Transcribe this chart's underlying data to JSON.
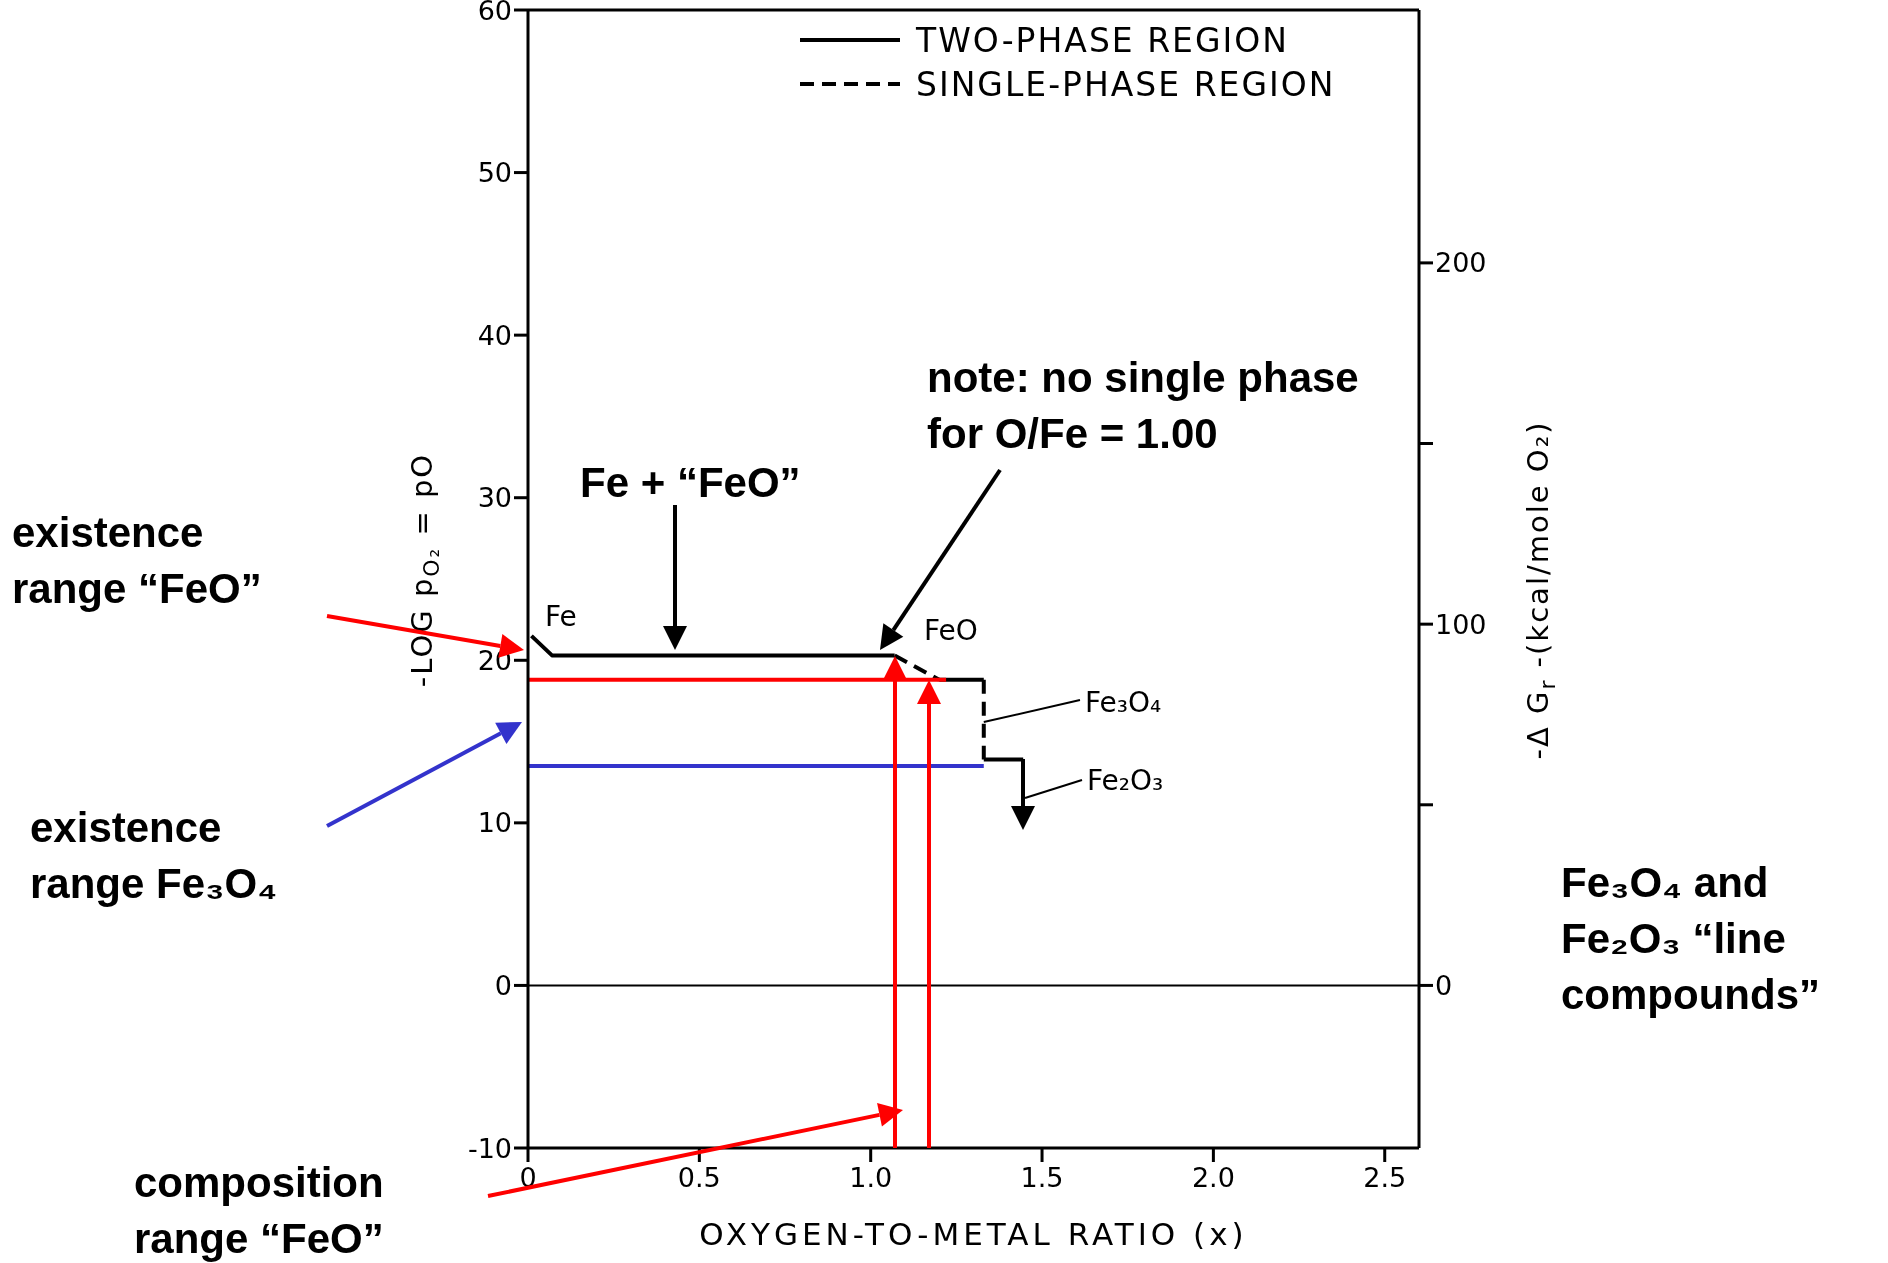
{
  "chart_data": {
    "type": "line",
    "xlabel": "OXYGEN-TO-METAL RATIO (x)",
    "ylabel": "-LOG p$_{O₂}$ = pO",
    "y2label": "-Δ G$_{r}$ -(kcal/mole O₂)",
    "xlim": [
      0,
      2.6
    ],
    "xticks": [
      0,
      0.5,
      {
        "value": 1,
        "label": "1.0"
      },
      1.5,
      {
        "value": 2,
        "label": "2.0"
      },
      2.5
    ],
    "ylim": [
      -10,
      60
    ],
    "yticks": [
      -10,
      0,
      10,
      20,
      30,
      40,
      50,
      60
    ],
    "y2lim": [
      -45,
      270
    ],
    "y2ticks": [
      0,
      {
        "value": 50,
        "label": null
      },
      100,
      {
        "value": 150,
        "label": null
      },
      200
    ],
    "legend": "top right",
    "marker": "none",
    "series": [
      {
        "name": "TWO-PHASE REGION",
        "color": "#000000",
        "line_style": "solid",
        "x": [
          0.01,
          0.07,
          1.07
        ],
        "values": [
          21.5,
          20.3,
          20.3
        ]
      },
      {
        "name": "SINGLE-PHASE REGION",
        "color": "#000000",
        "line_style": "dashed",
        "x": [
          1.07,
          1.2
        ],
        "values": [
          20.3,
          18.8
        ]
      },
      {
        "color": "#000000",
        "line_style": "solid",
        "x": [
          1.2,
          1.33
        ],
        "values": [
          18.8,
          18.8
        ]
      },
      {
        "color": "#000000",
        "line_style": "dashed",
        "x": [
          1.33,
          1.33
        ],
        "values": [
          18.8,
          13.9
        ]
      },
      {
        "color": "#000000",
        "line_style": "solid",
        "x": [
          1.33,
          1.445
        ],
        "values": [
          13.9,
          13.9
        ]
      },
      {
        "color": "#ff0000",
        "line_style": "solid",
        "x": [
          0,
          1.22
        ],
        "values": [
          18.8,
          18.8
        ]
      },
      {
        "color": "#3333cc",
        "line_style": "solid",
        "x": [
          0,
          1.33
        ],
        "values": [
          13.5,
          13.5
        ]
      }
    ],
    "ref_lines": [
      {
        "axis": "y",
        "value": 0,
        "color": "#000000"
      }
    ],
    "annotations": [
      "Fe",
      "FeO",
      {
        "text": "Fe₃O₄",
        "x": 1.33,
        "y": 16.2
      },
      "Fe₂O₃",
      "existence range “FeO”",
      "existence range Fe₃O₄",
      "composition range “FeO”",
      "Fe + “FeO”",
      "note: no single phase for O/Fe = 1.00",
      "Fe₃O₄ and Fe₂O₃ “line compounds”"
    ]
  }
}
